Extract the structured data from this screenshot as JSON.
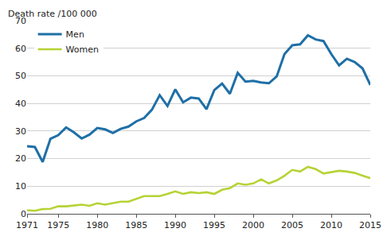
{
  "chart_data": {
    "type": "line",
    "y_label": "Death rate /100 000",
    "x": [
      1971,
      1972,
      1973,
      1974,
      1975,
      1976,
      1977,
      1978,
      1979,
      1980,
      1981,
      1982,
      1983,
      1984,
      1985,
      1986,
      1987,
      1988,
      1989,
      1990,
      1991,
      1992,
      1993,
      1994,
      1995,
      1996,
      1997,
      1998,
      1999,
      2000,
      2001,
      2002,
      2003,
      2004,
      2005,
      2006,
      2007,
      2008,
      2009,
      2010,
      2011,
      2012,
      2013,
      2014,
      2015
    ],
    "series": [
      {
        "name": "Men",
        "color": "#1f6fa6",
        "values": [
          24.5,
          24.2,
          18.8,
          27.2,
          28.5,
          31.3,
          29.5,
          27.3,
          28.7,
          31.1,
          30.6,
          29.3,
          30.8,
          31.6,
          33.5,
          34.7,
          37.7,
          43.0,
          39.1,
          45.1,
          40.4,
          42.1,
          41.8,
          37.9,
          44.8,
          47.2,
          43.5,
          51.1,
          47.9,
          48.2,
          47.6,
          47.3,
          49.8,
          57.9,
          61.1,
          61.4,
          64.7,
          63.2,
          62.6,
          57.9,
          53.8,
          56.2,
          55.0,
          52.7,
          46.7
        ]
      },
      {
        "name": "Women",
        "color": "#b6d335",
        "values": [
          1.3,
          1.1,
          1.7,
          1.8,
          2.7,
          2.7,
          3.0,
          3.3,
          2.9,
          3.8,
          3.3,
          3.9,
          4.4,
          4.4,
          5.3,
          6.4,
          6.4,
          6.4,
          7.2,
          8.1,
          7.2,
          7.8,
          7.5,
          7.8,
          7.2,
          8.7,
          9.3,
          11.0,
          10.5,
          11.0,
          12.5,
          11.0,
          12.1,
          13.8,
          15.9,
          15.3,
          17.0,
          16.2,
          14.6,
          15.0,
          15.6,
          15.3,
          14.8,
          13.8,
          12.9
        ]
      }
    ],
    "xlim": [
      1971,
      2015
    ],
    "xticks": [
      1971,
      1975,
      1980,
      1985,
      1990,
      1995,
      2000,
      2005,
      2010,
      2015
    ],
    "ylim": [
      0,
      70
    ],
    "yticks": [
      0,
      10,
      20,
      30,
      40,
      50,
      60,
      70
    ],
    "grid": true,
    "legend": "upper left"
  }
}
